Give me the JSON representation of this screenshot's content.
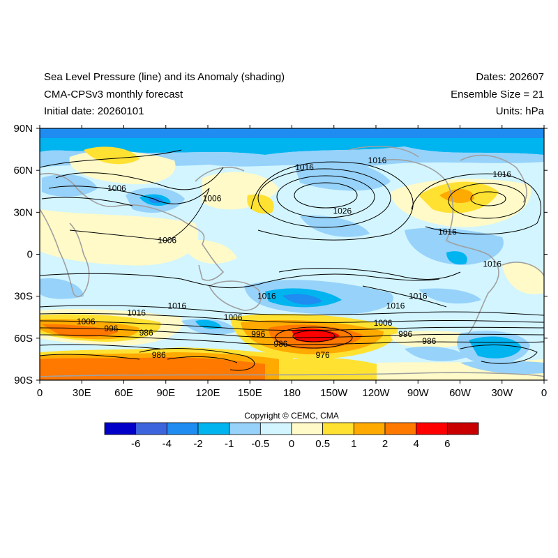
{
  "header": {
    "title_line1": "Sea Level Pressure (line) and its Anomaly (shading)",
    "title_line2": "CMA-CPSv3 monthly forecast",
    "title_line3": "Initial date: 20260101",
    "right_line1": "Dates: 202607",
    "right_line2": "Ensemble Size = 21",
    "right_line3": "Units: hPa"
  },
  "axes": {
    "lat_labels": [
      "90N",
      "60N",
      "30N",
      "0",
      "30S",
      "60S",
      "90S"
    ],
    "lon_labels": [
      "0",
      "30E",
      "60E",
      "90E",
      "120E",
      "150E",
      "180",
      "150W",
      "120W",
      "90W",
      "60W",
      "30W",
      "0"
    ]
  },
  "contour_labels": [
    {
      "text": "1006",
      "lon": 55,
      "lat": 47
    },
    {
      "text": "1006",
      "lon": 123,
      "lat": 40
    },
    {
      "text": "1016",
      "lon": 189,
      "lat": 62
    },
    {
      "text": "1016",
      "lon": 241,
      "lat": 67
    },
    {
      "text": "1016",
      "lon": 330,
      "lat": 57
    },
    {
      "text": "1026",
      "lon": 216,
      "lat": 31
    },
    {
      "text": "1006",
      "lon": 91,
      "lat": 10
    },
    {
      "text": "1016",
      "lon": 291,
      "lat": 16
    },
    {
      "text": "1016",
      "lon": 323,
      "lat": -7
    },
    {
      "text": "1016",
      "lon": 98,
      "lat": -37
    },
    {
      "text": "1016",
      "lon": 270,
      "lat": -30
    },
    {
      "text": "1016",
      "lon": 162,
      "lat": -30
    },
    {
      "text": "1016",
      "lon": 254,
      "lat": -37
    },
    {
      "text": "1016",
      "lon": 69,
      "lat": -42
    },
    {
      "text": "1006",
      "lon": 33,
      "lat": -48
    },
    {
      "text": "996",
      "lon": 51,
      "lat": -53
    },
    {
      "text": "986",
      "lon": 76,
      "lat": -56
    },
    {
      "text": "986",
      "lon": 85,
      "lat": -72
    },
    {
      "text": "1006",
      "lon": 138,
      "lat": -45
    },
    {
      "text": "996",
      "lon": 156,
      "lat": -57
    },
    {
      "text": "986",
      "lon": 172,
      "lat": -64
    },
    {
      "text": "976",
      "lon": 202,
      "lat": -72
    },
    {
      "text": "1006",
      "lon": 245,
      "lat": -49
    },
    {
      "text": "996",
      "lon": 261,
      "lat": -57
    },
    {
      "text": "986",
      "lon": 278,
      "lat": -62
    }
  ],
  "colorbar": {
    "colors": [
      "#0000c8",
      "#3c64dc",
      "#1e8cf0",
      "#00b4f0",
      "#96d2fa",
      "#d2f5ff",
      "#fffac8",
      "#ffe132",
      "#ffaa00",
      "#ff7800",
      "#ff0000",
      "#c80000"
    ],
    "labels": [
      "-6",
      "-4",
      "-2",
      "-1",
      "-0.5",
      "0",
      "0.5",
      "1",
      "2",
      "4",
      "6"
    ]
  },
  "copyright": "Copyright © CEMC, CMA"
}
